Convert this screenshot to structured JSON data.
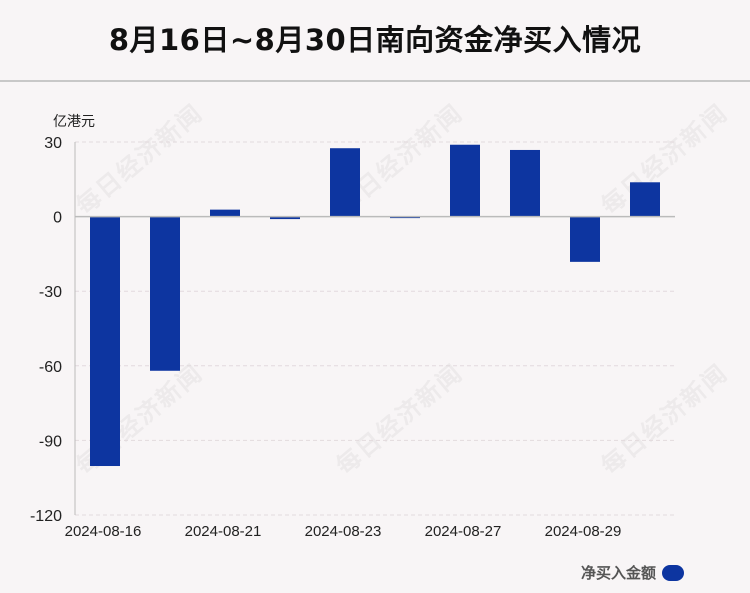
{
  "header": {
    "title": "8月16日~8月30日南向资金净买入情况"
  },
  "watermark": "每日经济新闻",
  "colors": {
    "bar": "#0d35a0",
    "axis": "#bbbbbb",
    "grid": "#e2dadd",
    "background": "#f8f5f6"
  },
  "chart_data": {
    "type": "bar",
    "categories": [
      "2024-08-16",
      "2024-08-19",
      "2024-08-21",
      "2024-08-22",
      "2024-08-23",
      "2024-08-26",
      "2024-08-27",
      "2024-08-28",
      "2024-08-29",
      "2024-08-30"
    ],
    "x_tick_labels": [
      "2024-08-16",
      "2024-08-21",
      "2024-08-23",
      "2024-08-27",
      "2024-08-29"
    ],
    "series": [
      {
        "name": "净买入金额",
        "values": [
          -100.3,
          -62.0,
          2.8,
          -1.0,
          27.5,
          -0.2,
          28.9,
          26.8,
          -18.2,
          13.8
        ]
      }
    ],
    "ylabel": "亿港元",
    "ylim": [
      -120,
      30
    ],
    "yticks": [
      30,
      0,
      -30,
      -60,
      -90,
      -120
    ],
    "grid": true,
    "legend": "bottom-right"
  }
}
